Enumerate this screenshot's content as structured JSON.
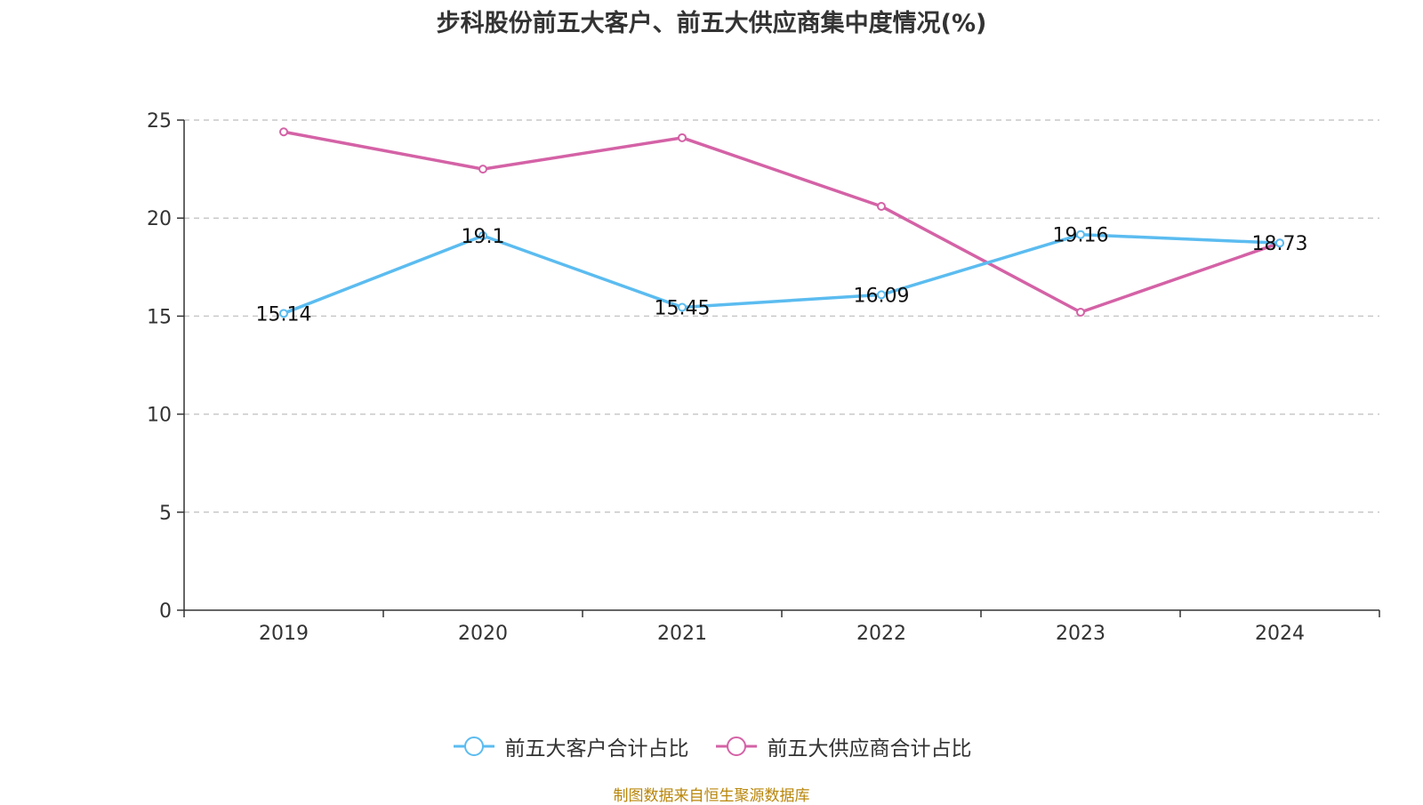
{
  "title": "步科股份前五大客户、前五大供应商集中度情况(%)",
  "source": "制图数据来自恒生聚源数据库",
  "chart_data": {
    "type": "line",
    "title": "步科股份前五大客户、前五大供应商集中度情况(%)",
    "x": [
      "2019",
      "2020",
      "2021",
      "2022",
      "2023",
      "2024"
    ],
    "ylim": [
      0,
      25
    ],
    "yticks": [
      0,
      5,
      10,
      15,
      20,
      25
    ],
    "grid": true,
    "legend_position": "bottom",
    "series": [
      {
        "name": "前五大客户合计占比",
        "color": "#5bbcf0",
        "values": [
          15.14,
          19.1,
          15.45,
          16.09,
          19.16,
          18.73
        ],
        "labels": [
          "15.14",
          "19.1",
          "15.45",
          "16.09",
          "19.16",
          "18.73"
        ],
        "show_labels": true
      },
      {
        "name": "前五大供应商合计占比",
        "color": "#d462a6",
        "values": [
          24.4,
          22.5,
          24.1,
          20.6,
          15.2,
          18.73
        ],
        "show_labels": false
      }
    ]
  }
}
